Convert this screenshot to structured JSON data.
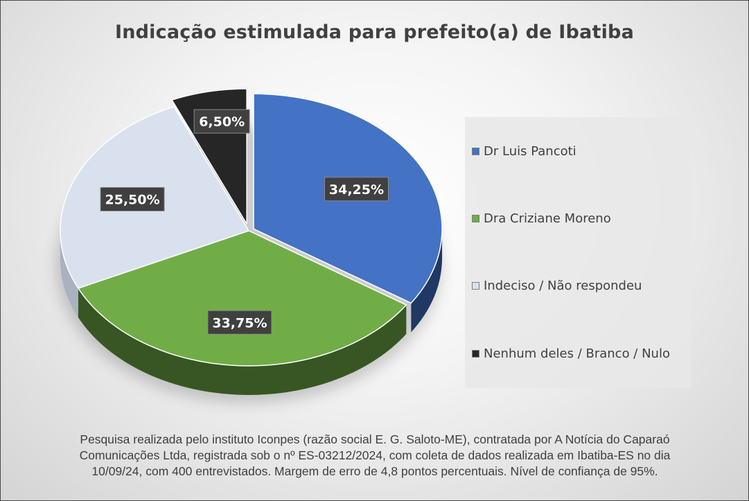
{
  "chart_data": {
    "type": "pie",
    "title": "Indicação estimulada para prefeito(a) de Ibatiba",
    "slices": [
      {
        "name": "Dr Luis Pancoti",
        "value": 34.25,
        "label": "34,25%",
        "color": "#4472C4",
        "side_color": "#1F3864"
      },
      {
        "name": "Dra Criziane Moreno",
        "value": 33.75,
        "label": "33,75%",
        "color": "#70AD47",
        "side_color": "#375623"
      },
      {
        "name": "Indeciso / Não respondeu",
        "value": 25.5,
        "label": "25,50%",
        "color": "#DAE1EE",
        "side_color": "#A9B2C2"
      },
      {
        "name": "Nenhum deles / Branco / Nulo",
        "value": 6.5,
        "label": "6,50%",
        "color": "#262626",
        "side_color": "#0d0d0d"
      }
    ],
    "legend_position": "right"
  },
  "footnote": [
    "Pesquisa realizada pelo instituto Iconpes (razão social E. G. Saloto-ME), contratada por A Notícia do Caparaó",
    "Comunicações Ltda, registrada sob o nº ES-03212/2024, com coleta de dados realizada em Ibatiba-ES no dia",
    "10/09/24, com 400 entrevistados. Margem de erro de 4,8 pontos percentuais. Nível de confiança de 95%."
  ]
}
